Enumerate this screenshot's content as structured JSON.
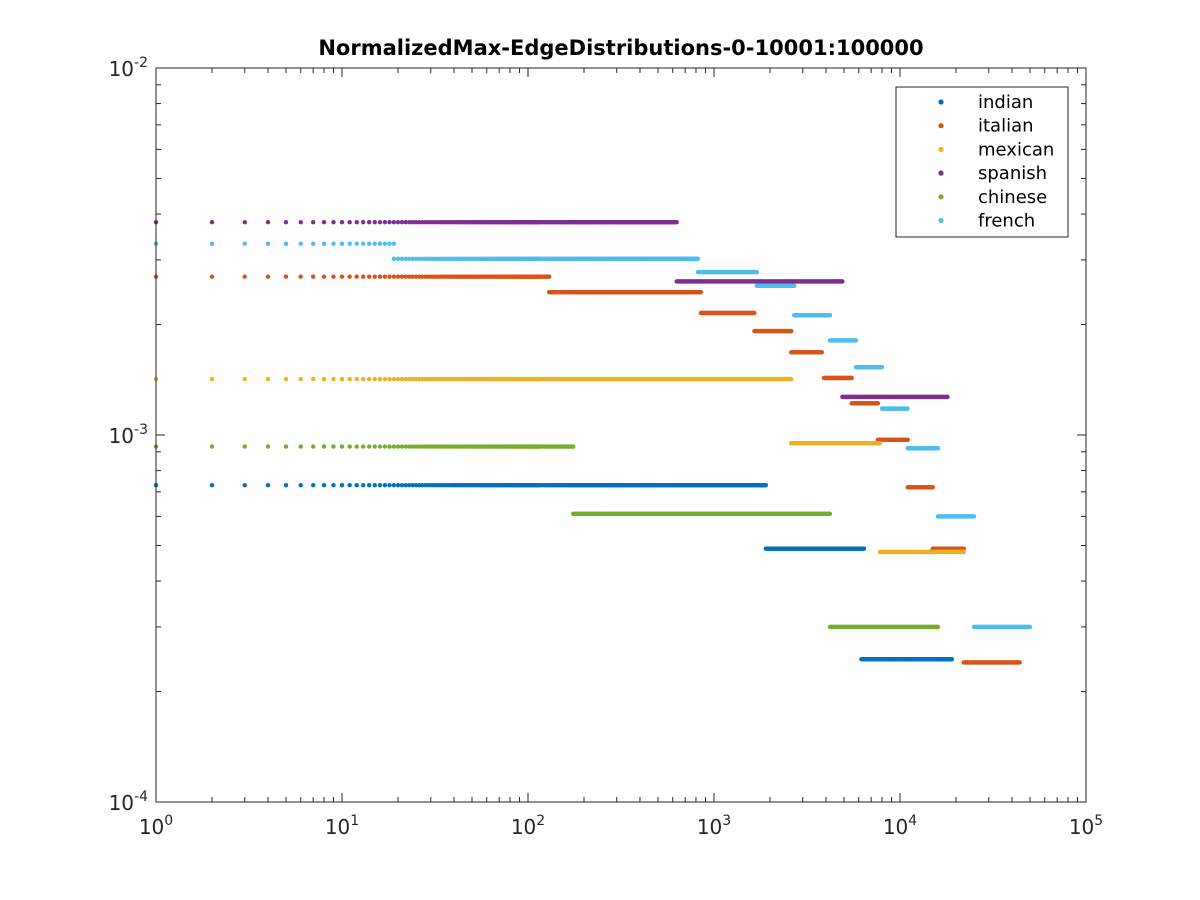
{
  "chart_data": {
    "type": "scatter",
    "title": "NormalizedMax-EdgeDistributions-0-10001:100000",
    "xlabel": "",
    "ylabel": "",
    "xscale": "log",
    "yscale": "log",
    "xlim": [
      1,
      100000
    ],
    "ylim": [
      0.0001,
      0.01
    ],
    "grid": false,
    "legend_position": "top-right",
    "x_ticks": [
      {
        "base": "10",
        "exp": "0"
      },
      {
        "base": "10",
        "exp": "1"
      },
      {
        "base": "10",
        "exp": "2"
      },
      {
        "base": "10",
        "exp": "3"
      },
      {
        "base": "10",
        "exp": "4"
      },
      {
        "base": "10",
        "exp": "5"
      }
    ],
    "y_ticks": [
      {
        "base": "10",
        "exp": "-4"
      },
      {
        "base": "10",
        "exp": "-3"
      },
      {
        "base": "10",
        "exp": "-2"
      }
    ],
    "series": [
      {
        "name": "indian",
        "color": "#0072BD",
        "runs": [
          [
            1,
            1900,
            0.00073
          ],
          [
            1900,
            6400,
            0.00049
          ],
          [
            6200,
            19000,
            0.000245
          ]
        ]
      },
      {
        "name": "italian",
        "color": "#D95319",
        "runs": [
          [
            1,
            130,
            0.0027
          ],
          [
            130,
            850,
            0.00245
          ],
          [
            850,
            1650,
            0.00215
          ],
          [
            1650,
            2600,
            0.00192
          ],
          [
            2600,
            3800,
            0.00168
          ],
          [
            3900,
            5500,
            0.00143
          ],
          [
            5500,
            7600,
            0.00122
          ],
          [
            7600,
            11000,
            0.00097
          ],
          [
            11000,
            15000,
            0.00072
          ],
          [
            15000,
            22000,
            0.00049
          ],
          [
            22000,
            44000,
            0.00024
          ]
        ]
      },
      {
        "name": "mexican",
        "color": "#EDB120",
        "runs": [
          [
            1,
            2600,
            0.00142
          ],
          [
            2600,
            7800,
            0.00095
          ],
          [
            7800,
            22000,
            0.00048
          ]
        ]
      },
      {
        "name": "spanish",
        "color": "#7E2F8E",
        "runs": [
          [
            1,
            630,
            0.0038
          ],
          [
            630,
            4900,
            0.00262
          ],
          [
            4900,
            18000,
            0.00127
          ]
        ]
      },
      {
        "name": "chinese",
        "color": "#77AC30",
        "runs": [
          [
            1,
            175,
            0.00093
          ],
          [
            175,
            4200,
            0.00061
          ],
          [
            4200,
            16000,
            0.0003
          ]
        ]
      },
      {
        "name": "french",
        "color": "#4DBEEE",
        "runs": [
          [
            1,
            19,
            0.00332
          ],
          [
            19,
            820,
            0.00302
          ],
          [
            820,
            1700,
            0.00278
          ],
          [
            1700,
            2700,
            0.00255
          ],
          [
            2700,
            4200,
            0.00212
          ],
          [
            4200,
            5800,
            0.00181
          ],
          [
            5800,
            8000,
            0.00153
          ],
          [
            8000,
            11000,
            0.00118
          ],
          [
            11000,
            16000,
            0.00092
          ],
          [
            16000,
            25000,
            0.0006
          ],
          [
            25000,
            50000,
            0.0003
          ]
        ]
      }
    ]
  }
}
